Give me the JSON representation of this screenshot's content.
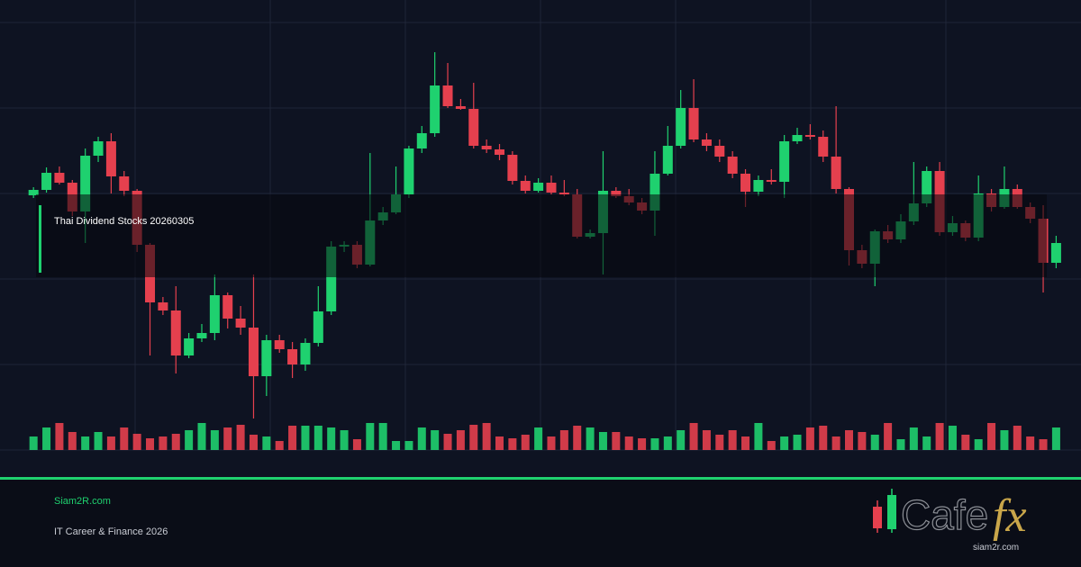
{
  "chart_data": {
    "type": "candlestick",
    "title": "Thai Dividend Stocks 20260305",
    "up_color": "#1fd16f",
    "down_color": "#e5404e",
    "ylim": [
      0,
      500
    ],
    "open": [
      283,
      289,
      308,
      297,
      265,
      327,
      343,
      304,
      288,
      228,
      164,
      155,
      105,
      124,
      130,
      172,
      146,
      136,
      82,
      122,
      112,
      95,
      119,
      154,
      226,
      228,
      206,
      255,
      264,
      284,
      335,
      352,
      405,
      382,
      379,
      338,
      334,
      328,
      299,
      288,
      297,
      286,
      284,
      237,
      241,
      288,
      282,
      275,
      266,
      307,
      338,
      380,
      345,
      338,
      326,
      307,
      287,
      300,
      298,
      343,
      350,
      348,
      326,
      290,
      222,
      207,
      243,
      234,
      254,
      274,
      310,
      242,
      252,
      236,
      285,
      270,
      290,
      270,
      257,
      208
    ],
    "high": [
      292,
      314,
      315,
      300,
      335,
      348,
      352,
      310,
      290,
      230,
      170,
      182,
      130,
      140,
      195,
      175,
      160,
      195,
      128,
      128,
      120,
      124,
      182,
      232,
      232,
      232,
      330,
      270,
      315,
      338,
      360,
      442,
      430,
      390,
      408,
      345,
      340,
      332,
      305,
      302,
      305,
      300,
      290,
      245,
      332,
      292,
      290,
      280,
      332,
      360,
      400,
      412,
      352,
      345,
      332,
      312,
      305,
      312,
      350,
      358,
      362,
      355,
      382,
      292,
      228,
      245,
      250,
      262,
      320,
      315,
      320,
      260,
      255,
      305,
      290,
      315,
      295,
      275,
      272,
      238
    ],
    "low": [
      280,
      286,
      295,
      260,
      230,
      320,
      285,
      282,
      220,
      105,
      150,
      85,
      102,
      120,
      122,
      135,
      128,
      35,
      60,
      108,
      80,
      88,
      115,
      150,
      220,
      202,
      204,
      250,
      262,
      280,
      330,
      348,
      380,
      378,
      335,
      330,
      322,
      295,
      285,
      286,
      284,
      282,
      235,
      235,
      195,
      280,
      272,
      262,
      238,
      305,
      335,
      342,
      332,
      320,
      302,
      270,
      282,
      295,
      280,
      340,
      345,
      320,
      285,
      205,
      202,
      182,
      230,
      230,
      250,
      270,
      238,
      238,
      232,
      232,
      265,
      268,
      268,
      252,
      175,
      202
    ],
    "close": [
      289,
      308,
      297,
      265,
      327,
      343,
      304,
      288,
      228,
      164,
      155,
      105,
      124,
      130,
      172,
      146,
      136,
      82,
      122,
      112,
      95,
      119,
      154,
      226,
      228,
      206,
      255,
      264,
      284,
      335,
      352,
      405,
      382,
      379,
      338,
      334,
      328,
      299,
      288,
      297,
      286,
      284,
      237,
      241,
      288,
      282,
      275,
      266,
      307,
      338,
      380,
      345,
      338,
      326,
      307,
      287,
      300,
      298,
      343,
      350,
      348,
      326,
      290,
      222,
      207,
      243,
      234,
      254,
      274,
      310,
      242,
      252,
      236,
      285,
      270,
      290,
      270,
      257,
      208,
      230
    ],
    "volume": [
      15,
      25,
      30,
      20,
      15,
      20,
      15,
      25,
      18,
      13,
      15,
      18,
      22,
      30,
      22,
      25,
      28,
      17,
      15,
      10,
      27,
      27,
      27,
      25,
      22,
      12,
      30,
      30,
      10,
      10,
      25,
      22,
      18,
      22,
      28,
      30,
      15,
      13,
      17,
      25,
      15,
      22,
      27,
      25,
      20,
      20,
      15,
      13,
      13,
      15,
      22,
      30,
      22,
      17,
      22,
      15,
      30,
      10,
      15,
      17,
      25,
      27,
      15,
      22,
      20,
      17,
      30,
      12,
      25,
      15,
      30,
      27,
      17,
      12,
      30,
      22,
      27,
      15,
      12,
      25
    ]
  },
  "footer": {
    "site": "Siam2R.com",
    "tagline": "IT Career & Finance 2026"
  },
  "logo": {
    "word": "Cafe",
    "accent": "fx",
    "url": "siam2r.com"
  }
}
